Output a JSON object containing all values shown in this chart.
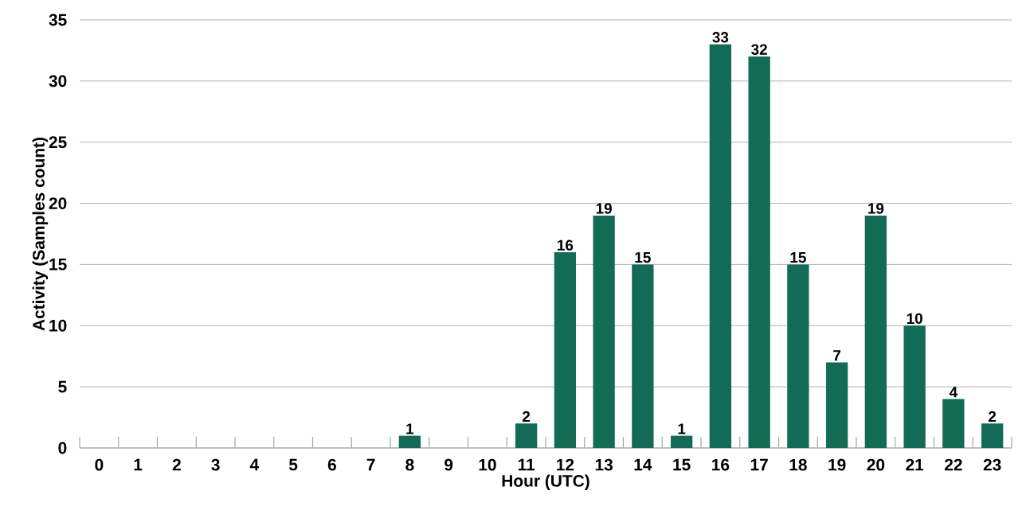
{
  "chart_data": {
    "type": "bar",
    "xlabel": "Hour (UTC)",
    "ylabel": "Activity (Samples count)",
    "categories": [
      "0",
      "1",
      "2",
      "3",
      "4",
      "5",
      "6",
      "7",
      "8",
      "9",
      "10",
      "11",
      "12",
      "13",
      "14",
      "15",
      "16",
      "17",
      "18",
      "19",
      "20",
      "21",
      "22",
      "23"
    ],
    "values": [
      0,
      0,
      0,
      0,
      0,
      0,
      0,
      0,
      1,
      0,
      0,
      2,
      16,
      19,
      15,
      1,
      33,
      32,
      15,
      7,
      19,
      10,
      4,
      2
    ],
    "value_labels": [
      null,
      null,
      null,
      null,
      null,
      null,
      null,
      null,
      "1",
      null,
      null,
      "2",
      "16",
      "19",
      "15",
      "1",
      "33",
      "32",
      "15",
      "7",
      "19",
      "10",
      "4",
      "2"
    ],
    "color": "#116b55",
    "ylim": [
      0,
      35
    ],
    "yticks": [
      0,
      5,
      10,
      15,
      20,
      25,
      30,
      35
    ],
    "grid": "y"
  }
}
